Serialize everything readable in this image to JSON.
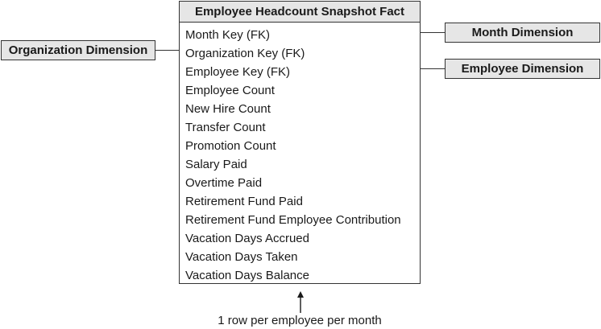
{
  "fact_table": {
    "title": "Employee Headcount Snapshot Fact",
    "fields": [
      "Month Key (FK)",
      "Organization Key (FK)",
      "Employee Key (FK)",
      "Employee Count",
      "New Hire Count",
      "Transfer Count",
      "Promotion Count",
      "Salary Paid",
      "Overtime Paid",
      "Retirement Fund Paid",
      "Retirement Fund Employee Contribution",
      "Vacation Days Accrued",
      "Vacation Days Taken",
      "Vacation Days Balance"
    ]
  },
  "dimensions": {
    "organization": "Organization Dimension",
    "month": "Month Dimension",
    "employee": "Employee Dimension"
  },
  "grain_note": "1 row per employee per month"
}
